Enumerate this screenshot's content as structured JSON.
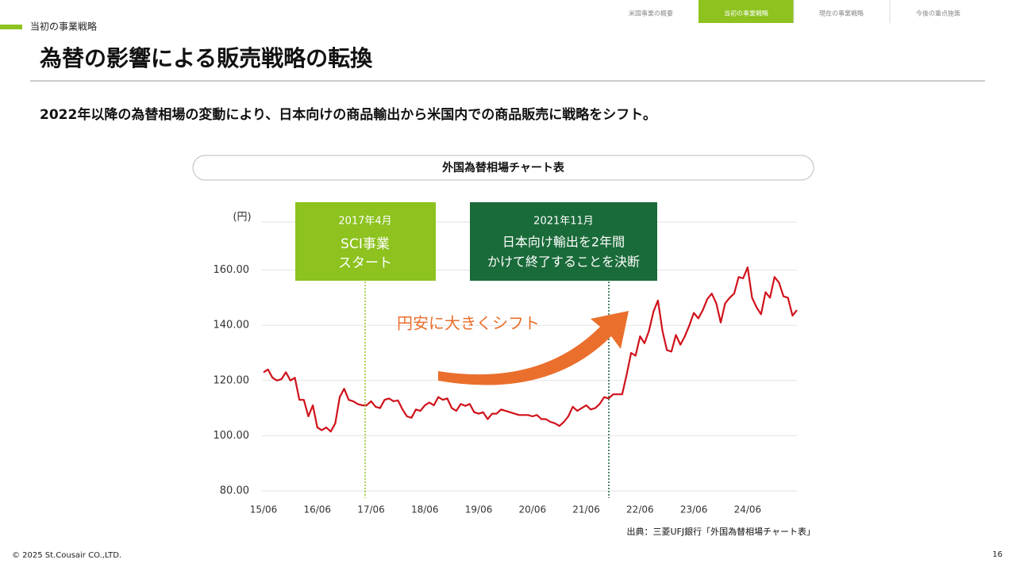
{
  "nav": [
    "米国事業の概要",
    "当初の事業戦略",
    "現在の事業戦略",
    "今後の重点施策"
  ],
  "section": "当初の事業戦略",
  "title": "為替の影響による販売戦略の転換",
  "lead": "2022年以降の為替相場の変動により、日本向けの商品輸出から米国内での商品販売に戦略をシフト。",
  "source": "出典：三菱UFJ銀行「外国為替相場チャート表」",
  "copyright": "© 2025 St.Cousair CO.,LTD.",
  "page": "16",
  "chart_data": {
    "type": "line",
    "title": "外国為替相場チャート表",
    "ylabel": "(円)",
    "color": "#d0121b",
    "x": [
      "15/06",
      "15/07",
      "15/08",
      "15/09",
      "15/10",
      "15/11",
      "15/12",
      "16/01",
      "16/02",
      "16/03",
      "16/04",
      "16/05",
      "16/06",
      "16/07",
      "16/08",
      "16/09",
      "16/10",
      "16/11",
      "16/12",
      "17/01",
      "17/02",
      "17/03",
      "17/04",
      "17/05",
      "17/06",
      "17/07",
      "17/08",
      "17/09",
      "17/10",
      "17/11",
      "17/12",
      "18/01",
      "18/02",
      "18/03",
      "18/04",
      "18/05",
      "18/06",
      "18/07",
      "18/08",
      "18/09",
      "18/10",
      "18/11",
      "18/12",
      "19/01",
      "19/02",
      "19/03",
      "19/04",
      "19/05",
      "19/06",
      "19/07",
      "19/08",
      "19/09",
      "19/10",
      "19/11",
      "19/12",
      "20/01",
      "20/02",
      "20/03",
      "20/04",
      "20/05",
      "20/06",
      "20/07",
      "20/08",
      "20/09",
      "20/10",
      "20/11",
      "20/12",
      "21/01",
      "21/02",
      "21/03",
      "21/04",
      "21/05",
      "21/06",
      "21/07",
      "21/08",
      "21/09",
      "21/10",
      "21/11",
      "21/12",
      "22/01",
      "22/02",
      "22/03",
      "22/04",
      "22/05",
      "22/06",
      "22/07",
      "22/08",
      "22/09",
      "22/10",
      "22/11",
      "22/12",
      "23/01",
      "23/02",
      "23/03",
      "23/04",
      "23/05",
      "23/06",
      "23/07",
      "23/08",
      "23/09",
      "23/10",
      "23/11",
      "23/12",
      "24/01",
      "24/02",
      "24/03",
      "24/04",
      "24/05",
      "24/06",
      "24/07",
      "24/08",
      "24/09",
      "24/10",
      "24/11",
      "24/12",
      "25/01",
      "25/02",
      "25/03",
      "25/04",
      "25/05"
    ],
    "values": [
      123,
      124,
      121,
      120,
      120.5,
      123,
      120,
      121,
      113,
      113,
      107,
      111,
      103,
      102,
      103,
      101.5,
      104.5,
      114,
      117,
      113,
      112.5,
      111.5,
      111,
      111,
      112.5,
      110.5,
      110,
      113,
      113.5,
      112.5,
      112.8,
      109.5,
      107,
      106.5,
      109.5,
      109,
      111,
      112,
      111,
      114,
      113,
      113.5,
      110,
      109,
      111.5,
      110.8,
      111.5,
      108.5,
      108,
      108.5,
      106,
      108,
      108,
      109.5,
      109,
      108.5,
      108,
      107.5,
      107.5,
      107.5,
      107,
      107.5,
      106,
      106,
      105,
      104.5,
      103.5,
      105,
      107,
      110.5,
      109,
      110,
      111,
      109.5,
      110,
      111.5,
      114,
      113.5,
      115,
      115,
      115,
      122,
      130,
      129,
      136,
      133.5,
      138,
      145,
      149,
      138,
      131,
      130.5,
      136.5,
      133,
      136,
      140,
      144.5,
      142.5,
      145.5,
      149.5,
      151.5,
      148,
      141,
      148,
      150,
      151.5,
      157.5,
      157,
      161,
      150,
      146.5,
      144,
      152,
      150,
      157.5,
      155.5,
      150.5,
      150,
      143.5,
      145.5
    ],
    "xticks": [
      "15/06",
      "16/06",
      "17/06",
      "18/06",
      "19/06",
      "20/06",
      "21/06",
      "22/06",
      "23/06",
      "24/06"
    ],
    "ylim": [
      80,
      180
    ],
    "yticks": [
      {
        "value": 80,
        "label": "80.00"
      },
      {
        "value": 100,
        "label": "100.00"
      },
      {
        "value": 120,
        "label": "120.00"
      },
      {
        "value": 140,
        "label": "140.00"
      },
      {
        "value": 160,
        "label": "160.00"
      }
    ],
    "grid": true,
    "annotations": [
      {
        "date": "2017年4月",
        "lines": [
          "SCI事業",
          "スタート"
        ]
      },
      {
        "date": "2021年11月",
        "lines": [
          "日本向け輸出を2年間",
          "かけて終了することを決断"
        ]
      }
    ],
    "trend_label": "円安に大きくシフト"
  }
}
